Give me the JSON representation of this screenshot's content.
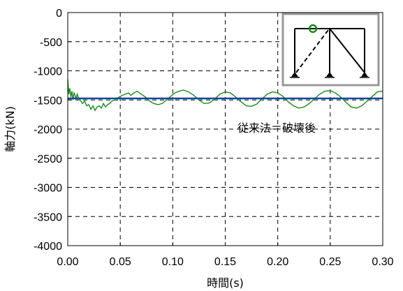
{
  "chart_data": {
    "type": "line",
    "title": "",
    "xlabel": "時間(s)",
    "ylabel": "軸力(kN)",
    "xlim": [
      0,
      0.3
    ],
    "ylim": [
      -4000,
      0
    ],
    "x_ticks": [
      "0.00",
      "0.05",
      "0.10",
      "0.15",
      "0.20",
      "0.25",
      "0.30"
    ],
    "y_ticks": [
      "0",
      "-500",
      "-1000",
      "-1500",
      "-2000",
      "-2500",
      "-3000",
      "-3500",
      "-4000"
    ],
    "grid": true,
    "annotation": "従来法＝破壊後",
    "series": [
      {
        "color": "#1a8a1a",
        "x": [
          0.0,
          0.001,
          0.002,
          0.003,
          0.004,
          0.005,
          0.006,
          0.007,
          0.008,
          0.009,
          0.01,
          0.012,
          0.014,
          0.016,
          0.018,
          0.02,
          0.022,
          0.024,
          0.026,
          0.028,
          0.03,
          0.032,
          0.034,
          0.036,
          0.038,
          0.04,
          0.042,
          0.045,
          0.048,
          0.05,
          0.052,
          0.055,
          0.058,
          0.06,
          0.063,
          0.066,
          0.07,
          0.074,
          0.078,
          0.082,
          0.086,
          0.09,
          0.094,
          0.098,
          0.102,
          0.106,
          0.11,
          0.115,
          0.12,
          0.125,
          0.13,
          0.135,
          0.14,
          0.145,
          0.15,
          0.155,
          0.16,
          0.165,
          0.17,
          0.175,
          0.18,
          0.185,
          0.19,
          0.195,
          0.2,
          0.205,
          0.21,
          0.215,
          0.22,
          0.225,
          0.23,
          0.235,
          0.24,
          0.245,
          0.25,
          0.255,
          0.26,
          0.265,
          0.27,
          0.275,
          0.28,
          0.285,
          0.29,
          0.295,
          0.3
        ],
        "y": [
          -1150,
          -1400,
          -1300,
          -1450,
          -1350,
          -1500,
          -1380,
          -1420,
          -1480,
          -1400,
          -1450,
          -1500,
          -1560,
          -1520,
          -1600,
          -1580,
          -1660,
          -1600,
          -1680,
          -1620,
          -1600,
          -1640,
          -1560,
          -1620,
          -1580,
          -1560,
          -1520,
          -1500,
          -1460,
          -1440,
          -1420,
          -1400,
          -1380,
          -1420,
          -1380,
          -1350,
          -1400,
          -1450,
          -1520,
          -1560,
          -1580,
          -1560,
          -1500,
          -1440,
          -1380,
          -1350,
          -1330,
          -1360,
          -1420,
          -1500,
          -1560,
          -1550,
          -1480,
          -1400,
          -1360,
          -1380,
          -1450,
          -1530,
          -1600,
          -1610,
          -1570,
          -1480,
          -1400,
          -1360,
          -1380,
          -1440,
          -1530,
          -1600,
          -1640,
          -1620,
          -1560,
          -1480,
          -1400,
          -1350,
          -1340,
          -1380,
          -1450,
          -1540,
          -1620,
          -1640,
          -1600,
          -1520,
          -1440,
          -1360,
          -1350
        ]
      },
      {
        "color": "#00a0a0",
        "x": [
          0.0,
          0.3
        ],
        "y": [
          -1480,
          -1480
        ]
      },
      {
        "color": "#2020a0",
        "x": [
          0.0,
          0.3
        ],
        "y": [
          -1470,
          -1470
        ]
      }
    ],
    "inset": {
      "frame_color": "#999999",
      "marker_color": "#1a8a1a"
    }
  }
}
